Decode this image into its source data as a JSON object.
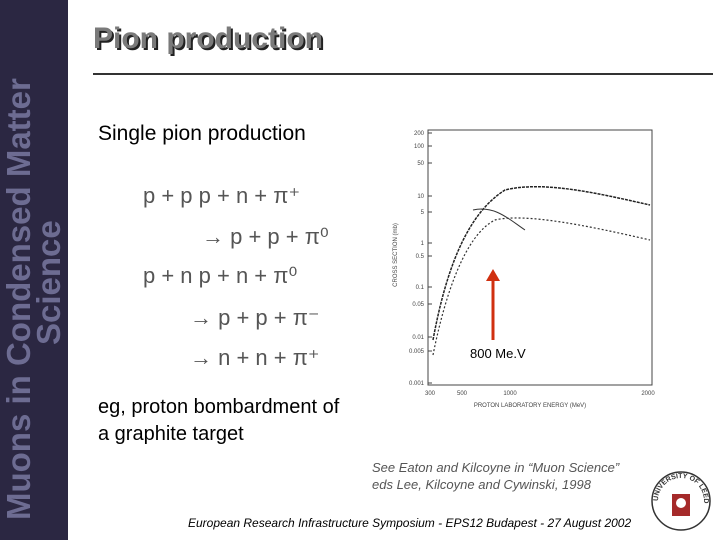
{
  "sidebar": {
    "lines": [
      "Muons in Condensed Matter",
      "Science"
    ]
  },
  "header": {
    "title": "Pion production"
  },
  "subtitle": "Single pion production",
  "reactions": [
    "p + p  p + n + π⁺",
    "→ p + p + π⁰",
    "p + n  p + n + π⁰",
    "→ p + p + π⁻",
    "→ n + n + π⁺"
  ],
  "note": [
    "eg, proton bombardment of",
    "a graphite target"
  ],
  "figure": {
    "y_label": "CROSS SECTION (mb)",
    "x_label": "PROTON LABORATORY ENERGY (MeV)",
    "y_ticks": [
      "200",
      "100",
      "50",
      "10",
      "5",
      "1",
      "0.5",
      "0.1",
      "0.05",
      "0.01",
      "0.005",
      "0.001"
    ],
    "x_ticks": [
      "300",
      "500",
      "1000",
      "2000"
    ],
    "marker": "800 Me.V"
  },
  "reference": [
    "See Eaton and Kilcoyne in “Muon Science”",
    "eds Lee, Kilcoyne and Cywinski, 1998"
  ],
  "logo": "UNIVERSITY OF LEEDS",
  "footer": "European Research Infrastructure Symposium - EPS12 Budapest - 27 August 2002"
}
